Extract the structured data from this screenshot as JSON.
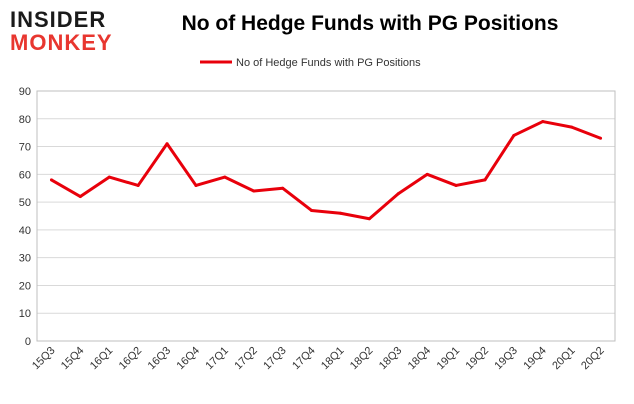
{
  "brand": {
    "line1": "INSIDER",
    "line2": "MONKEY",
    "color1": "#1a1a1a",
    "color2": "#e8362f"
  },
  "chart_data": {
    "type": "line",
    "title": "No of Hedge Funds with PG Positions",
    "xlabel": "",
    "ylabel": "",
    "categories": [
      "15Q3",
      "15Q4",
      "16Q1",
      "16Q2",
      "16Q3",
      "16Q4",
      "17Q1",
      "17Q2",
      "17Q3",
      "17Q4",
      "18Q1",
      "18Q2",
      "18Q3",
      "18Q4",
      "19Q1",
      "19Q2",
      "19Q3",
      "19Q4",
      "20Q1",
      "20Q2"
    ],
    "series": [
      {
        "name": "No of Hedge Funds with PG Positions",
        "color": "#e8000b",
        "values": [
          58,
          52,
          59,
          56,
          71,
          56,
          59,
          54,
          55,
          47,
          46,
          44,
          53,
          60,
          56,
          58,
          74,
          79,
          77,
          73
        ]
      }
    ],
    "ylim": [
      0,
      90
    ],
    "yticks": [
      0,
      10,
      20,
      30,
      40,
      50,
      60,
      70,
      80,
      90
    ],
    "grid": true,
    "legend": "top-center"
  }
}
